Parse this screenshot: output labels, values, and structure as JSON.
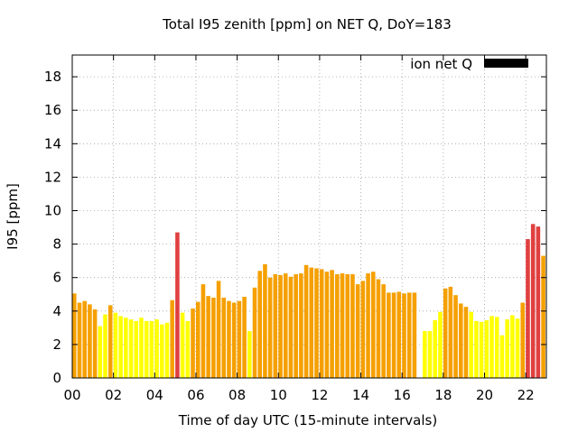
{
  "chart_data": {
    "type": "bar",
    "title": "Total I95 zenith [ppm] on NET Q, DoY=183",
    "xlabel": "Time of day UTC (15-minute intervals)",
    "ylabel": "I95 [ppm]",
    "xlim": [
      0,
      23
    ],
    "ylim": [
      0,
      19.3
    ],
    "xticks": [
      "00",
      "02",
      "04",
      "06",
      "08",
      "10",
      "12",
      "14",
      "16",
      "18",
      "20",
      "22"
    ],
    "yticks": [
      "0",
      "2",
      "4",
      "6",
      "8",
      "10",
      "12",
      "14",
      "16",
      "18"
    ],
    "grid": true,
    "legend": {
      "position": "top-right",
      "label": "ion net Q",
      "color": "#000000"
    },
    "bar_width_hours": 0.2,
    "colors": {
      "low": "#ffff00",
      "mid": "#f5a000",
      "high": "#e04040"
    },
    "thresholds": {
      "low_max": 4.0,
      "mid_max": 8.0
    },
    "series": [
      {
        "name": "ion net Q",
        "points": [
          {
            "x": 0.0,
            "y": 5.05
          },
          {
            "x": 0.25,
            "y": 4.5
          },
          {
            "x": 0.5,
            "y": 4.6
          },
          {
            "x": 0.75,
            "y": 4.4
          },
          {
            "x": 1.0,
            "y": 4.1
          },
          {
            "x": 1.25,
            "y": 3.1
          },
          {
            "x": 1.5,
            "y": 3.8
          },
          {
            "x": 1.75,
            "y": 4.35
          },
          {
            "x": 2.0,
            "y": 3.9
          },
          {
            "x": 2.25,
            "y": 3.7
          },
          {
            "x": 2.5,
            "y": 3.6
          },
          {
            "x": 2.75,
            "y": 3.5
          },
          {
            "x": 3.0,
            "y": 3.4
          },
          {
            "x": 3.25,
            "y": 3.6
          },
          {
            "x": 3.5,
            "y": 3.4
          },
          {
            "x": 3.75,
            "y": 3.4
          },
          {
            "x": 4.0,
            "y": 3.5
          },
          {
            "x": 4.25,
            "y": 3.2
          },
          {
            "x": 4.5,
            "y": 3.3
          },
          {
            "x": 4.75,
            "y": 4.65
          },
          {
            "x": 5.0,
            "y": 8.7
          },
          {
            "x": 5.25,
            "y": 3.9
          },
          {
            "x": 5.5,
            "y": 3.4
          },
          {
            "x": 5.75,
            "y": 4.15
          },
          {
            "x": 6.0,
            "y": 4.55
          },
          {
            "x": 6.25,
            "y": 5.6
          },
          {
            "x": 6.5,
            "y": 4.9
          },
          {
            "x": 6.75,
            "y": 4.8
          },
          {
            "x": 7.0,
            "y": 5.8
          },
          {
            "x": 7.25,
            "y": 4.8
          },
          {
            "x": 7.5,
            "y": 4.6
          },
          {
            "x": 7.75,
            "y": 4.5
          },
          {
            "x": 8.0,
            "y": 4.6
          },
          {
            "x": 8.25,
            "y": 4.85
          },
          {
            "x": 8.5,
            "y": 2.8
          },
          {
            "x": 8.75,
            "y": 5.4
          },
          {
            "x": 9.0,
            "y": 6.4
          },
          {
            "x": 9.25,
            "y": 6.8
          },
          {
            "x": 9.5,
            "y": 6.0
          },
          {
            "x": 9.75,
            "y": 6.2
          },
          {
            "x": 10.0,
            "y": 6.15
          },
          {
            "x": 10.25,
            "y": 6.25
          },
          {
            "x": 10.5,
            "y": 6.05
          },
          {
            "x": 10.75,
            "y": 6.2
          },
          {
            "x": 11.0,
            "y": 6.25
          },
          {
            "x": 11.25,
            "y": 6.75
          },
          {
            "x": 11.5,
            "y": 6.6
          },
          {
            "x": 11.75,
            "y": 6.55
          },
          {
            "x": 12.0,
            "y": 6.5
          },
          {
            "x": 12.25,
            "y": 6.35
          },
          {
            "x": 12.5,
            "y": 6.45
          },
          {
            "x": 12.75,
            "y": 6.2
          },
          {
            "x": 13.0,
            "y": 6.25
          },
          {
            "x": 13.25,
            "y": 6.2
          },
          {
            "x": 13.5,
            "y": 6.2
          },
          {
            "x": 13.75,
            "y": 5.6
          },
          {
            "x": 14.0,
            "y": 5.8
          },
          {
            "x": 14.25,
            "y": 6.25
          },
          {
            "x": 14.5,
            "y": 6.35
          },
          {
            "x": 14.75,
            "y": 5.9
          },
          {
            "x": 15.0,
            "y": 5.6
          },
          {
            "x": 15.25,
            "y": 5.1
          },
          {
            "x": 15.5,
            "y": 5.1
          },
          {
            "x": 15.75,
            "y": 5.15
          },
          {
            "x": 16.0,
            "y": 5.05
          },
          {
            "x": 16.25,
            "y": 5.1
          },
          {
            "x": 16.5,
            "y": 5.1
          },
          {
            "x": 17.0,
            "y": 2.8
          },
          {
            "x": 17.25,
            "y": 2.8
          },
          {
            "x": 17.5,
            "y": 3.45
          },
          {
            "x": 17.75,
            "y": 3.95
          },
          {
            "x": 18.0,
            "y": 5.35
          },
          {
            "x": 18.25,
            "y": 5.45
          },
          {
            "x": 18.5,
            "y": 4.95
          },
          {
            "x": 18.75,
            "y": 4.45
          },
          {
            "x": 19.0,
            "y": 4.25
          },
          {
            "x": 19.25,
            "y": 3.95
          },
          {
            "x": 19.5,
            "y": 3.4
          },
          {
            "x": 19.75,
            "y": 3.35
          },
          {
            "x": 20.0,
            "y": 3.45
          },
          {
            "x": 20.25,
            "y": 3.7
          },
          {
            "x": 20.5,
            "y": 3.65
          },
          {
            "x": 20.75,
            "y": 2.55
          },
          {
            "x": 21.0,
            "y": 3.5
          },
          {
            "x": 21.25,
            "y": 3.75
          },
          {
            "x": 21.5,
            "y": 3.55
          },
          {
            "x": 21.75,
            "y": 4.5
          },
          {
            "x": 22.0,
            "y": 8.3
          },
          {
            "x": 22.25,
            "y": 9.2
          },
          {
            "x": 22.5,
            "y": 9.05
          },
          {
            "x": 22.75,
            "y": 7.3
          }
        ]
      }
    ]
  }
}
